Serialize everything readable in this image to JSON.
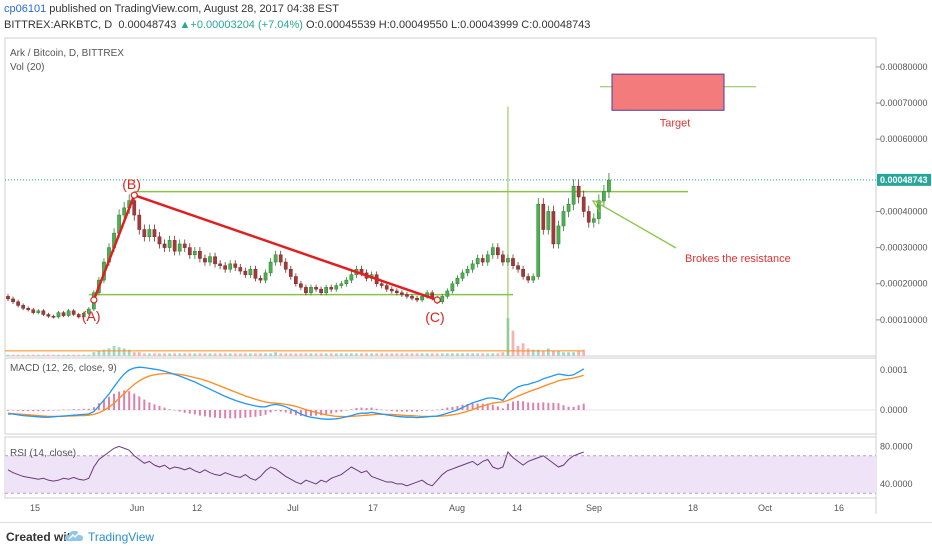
{
  "header": {
    "publisher": "cp06101",
    "published_text": "published on TradingView.com, August 28, 2017 04:38 EST",
    "symbol": "BITTREX:ARKBTC, D",
    "last": "0.00048743",
    "change_arrow": "▲",
    "change": "+0.00003204 (+7.04%)",
    "ohlc": "O:0.00045539 H:0.00049550 L:0.00043999 C:0.00048743"
  },
  "panes": {
    "main_title": "Ark / Bitcoin, D, BITTREX",
    "vol_label": "Vol (20)",
    "macd_label": "MACD (12, 26, close, 9)",
    "rsi_label": "RSI (14, close)"
  },
  "annotations": {
    "point_a": "(A)",
    "point_b": "(B)",
    "point_c": "(C)",
    "target": "Target",
    "note": "Brokes the resistance"
  },
  "footer": {
    "created_with": "Created with",
    "brand": "TradingView",
    "logo_icon": "tradingview-cloud-icon"
  },
  "colors": {
    "up": "#26a69a",
    "down": "#ef5350",
    "candle_body_up": "#4caf50",
    "candle_body_down": "#a33a3a",
    "trendline": "#e02020",
    "support": "#8bc34a",
    "macd": "#2196f3",
    "signal": "#ff8a1e",
    "hist": "#d04a8a",
    "rsi": "#6a3a7a",
    "rsi_band": "#efe3f7",
    "target_box": "#f37b7b",
    "price_tag": "#26a69a"
  },
  "chart_data": {
    "type": "candlestick",
    "x_ticks": [
      "15",
      "Jun",
      "12",
      "Jul",
      "17",
      "Aug",
      "14",
      "Sep",
      "18",
      "Oct",
      "16"
    ],
    "price_axis": {
      "ticks": [
        "0.00080000",
        "0.00070000",
        "0.00060000",
        "0.00040000",
        "0.00030000",
        "0.00020000",
        "0.00010000"
      ],
      "range": [
        0.0,
        0.00088
      ],
      "current": "0.00048743",
      "current_value": 0.00048743
    },
    "macd_axis": {
      "ticks": [
        "0.0001",
        "0.0000"
      ],
      "range": [
        -6e-05,
        0.00013
      ]
    },
    "rsi_axis": {
      "ticks": [
        "80.0000",
        "40.0000"
      ],
      "range": [
        25,
        90
      ],
      "band": [
        30,
        70
      ]
    },
    "patterns": {
      "A": {
        "x": 17,
        "price": 0.000155
      },
      "B": {
        "x": 25,
        "price": 0.000445
      },
      "C": {
        "x": 85,
        "price": 0.000155
      },
      "resistance": 0.000455,
      "support": 0.00017,
      "target_box": {
        "x0": 119,
        "x1": 140,
        "top": 0.00078,
        "bottom": 0.00068
      },
      "target_line": 0.000745
    },
    "candles": [
      [
        0.000165,
        0.000158
      ],
      [
        0.000158,
        0.00015
      ],
      [
        0.00015,
        0.00014
      ],
      [
        0.00014,
        0.000132
      ],
      [
        0.000132,
        0.000128
      ],
      [
        0.000128,
        0.00012
      ],
      [
        0.00012,
        0.000125
      ],
      [
        0.000125,
        0.000115
      ],
      [
        0.000115,
        0.00011
      ],
      [
        0.00011,
        0.000108
      ],
      [
        0.000108,
        0.00012
      ],
      [
        0.00012,
        0.000112
      ],
      [
        0.000112,
        0.000125
      ],
      [
        0.000125,
        0.000115
      ],
      [
        0.000115,
        0.000108
      ],
      [
        0.000108,
        0.000118
      ],
      [
        0.000118,
        0.00013
      ],
      [
        0.00013,
        0.000175
      ],
      [
        0.000175,
        0.00021
      ],
      [
        0.00021,
        0.00026
      ],
      [
        0.00026,
        0.0003
      ],
      [
        0.0003,
        0.00034
      ],
      [
        0.00034,
        0.00039
      ],
      [
        0.00039,
        0.00041
      ],
      [
        0.00041,
        0.00043
      ],
      [
        0.00043,
        0.00039
      ],
      [
        0.00039,
        0.00035
      ],
      [
        0.00035,
        0.00033
      ],
      [
        0.00033,
        0.00035
      ],
      [
        0.00035,
        0.00033
      ],
      [
        0.00033,
        0.00031
      ],
      [
        0.00031,
        0.0003
      ],
      [
        0.0003,
        0.00032
      ],
      [
        0.00032,
        0.00029
      ],
      [
        0.00029,
        0.00031
      ],
      [
        0.00031,
        0.0003
      ],
      [
        0.0003,
        0.00028
      ],
      [
        0.00028,
        0.00029
      ],
      [
        0.00029,
        0.00027
      ],
      [
        0.00027,
        0.00026
      ],
      [
        0.00026,
        0.000275
      ],
      [
        0.000275,
        0.000255
      ],
      [
        0.000255,
        0.00025
      ],
      [
        0.00025,
        0.00024
      ],
      [
        0.00024,
        0.000255
      ],
      [
        0.000255,
        0.000245
      ],
      [
        0.000245,
        0.000235
      ],
      [
        0.000235,
        0.000225
      ],
      [
        0.000225,
        0.00024
      ],
      [
        0.00024,
        0.000215
      ],
      [
        0.000215,
        0.00021
      ],
      [
        0.00021,
        0.00023
      ],
      [
        0.00023,
        0.00026
      ],
      [
        0.00026,
        0.00028
      ],
      [
        0.00028,
        0.00026
      ],
      [
        0.00026,
        0.00024
      ],
      [
        0.00024,
        0.00022
      ],
      [
        0.00022,
        0.0002
      ],
      [
        0.0002,
        0.00019
      ],
      [
        0.00019,
        0.000175
      ],
      [
        0.000175,
        0.00019
      ],
      [
        0.00019,
        0.000185
      ],
      [
        0.000185,
        0.000175
      ],
      [
        0.000175,
        0.00019
      ],
      [
        0.00019,
        0.000185
      ],
      [
        0.000185,
        0.000195
      ],
      [
        0.000195,
        0.0002
      ],
      [
        0.0002,
        0.00021
      ],
      [
        0.00021,
        0.000225
      ],
      [
        0.000225,
        0.00024
      ],
      [
        0.00024,
        0.00023
      ],
      [
        0.00023,
        0.000215
      ],
      [
        0.000215,
        0.000225
      ],
      [
        0.000225,
        0.0002
      ],
      [
        0.0002,
        0.000195
      ],
      [
        0.000195,
        0.000185
      ],
      [
        0.000185,
        0.00018
      ],
      [
        0.00018,
        0.000175
      ],
      [
        0.000175,
        0.00017
      ],
      [
        0.00017,
        0.000165
      ],
      [
        0.000165,
        0.00016
      ],
      [
        0.00016,
        0.000155
      ],
      [
        0.000155,
        0.000165
      ],
      [
        0.000165,
        0.000175
      ],
      [
        0.000175,
        0.00016
      ],
      [
        0.00016,
        0.00015
      ],
      [
        0.00015,
        0.000165
      ],
      [
        0.000165,
        0.00018
      ],
      [
        0.00018,
        0.0002
      ],
      [
        0.0002,
        0.000215
      ],
      [
        0.000215,
        0.00023
      ],
      [
        0.00023,
        0.00024
      ],
      [
        0.00024,
        0.000255
      ],
      [
        0.000255,
        0.00027
      ],
      [
        0.00027,
        0.00026
      ],
      [
        0.00026,
        0.00028
      ],
      [
        0.00028,
        0.0003
      ],
      [
        0.0003,
        0.00028
      ],
      [
        0.00028,
        0.00026
      ],
      [
        0.00026,
        0.00027
      ],
      [
        0.00027,
        0.00025
      ],
      [
        0.00025,
        0.00024
      ],
      [
        0.00024,
        0.00022
      ],
      [
        0.00022,
        0.00021
      ],
      [
        0.00021,
        0.00022
      ],
      [
        0.00022,
        0.00042
      ],
      [
        0.00042,
        0.00035
      ],
      [
        0.00035,
        0.0004
      ],
      [
        0.0004,
        0.00031
      ],
      [
        0.00031,
        0.00036
      ],
      [
        0.00036,
        0.0004
      ],
      [
        0.0004,
        0.00042
      ],
      [
        0.00042,
        0.00047
      ],
      [
        0.00047,
        0.00044
      ],
      [
        0.00044,
        0.0004
      ],
      [
        0.0004,
        0.00037
      ],
      [
        0.00037,
        0.00038
      ],
      [
        0.00038,
        0.00043
      ],
      [
        0.00043,
        0.000455
      ],
      [
        0.000455,
        0.000487
      ]
    ],
    "spike": {
      "x": 99,
      "high": 0.00069
    },
    "volumes": [
      1,
      1,
      1,
      1,
      1,
      1,
      1,
      1,
      1,
      1,
      1,
      1,
      1,
      1,
      1,
      1,
      1,
      3,
      4,
      5,
      6,
      8,
      7,
      6,
      5,
      3,
      3,
      2,
      2,
      2,
      2,
      2,
      2,
      2,
      2,
      2,
      2,
      2,
      2,
      2,
      2,
      2,
      2,
      2,
      2,
      2,
      2,
      2,
      2,
      2,
      2,
      2,
      2,
      3,
      2,
      2,
      2,
      2,
      2,
      2,
      2,
      2,
      2,
      2,
      2,
      2,
      2,
      2,
      2,
      2,
      2,
      2,
      2,
      2,
      2,
      2,
      2,
      2,
      2,
      2,
      2,
      2,
      2,
      2,
      2,
      2,
      2,
      2,
      2,
      2,
      2,
      2,
      2,
      2,
      2,
      2,
      2,
      2,
      3,
      30,
      20,
      8,
      10,
      6,
      5,
      5,
      4,
      6,
      4,
      4,
      3,
      3,
      3,
      4,
      5
    ],
    "volume_ma": 4,
    "macd": [
      -1e-05,
      -1e-05,
      -1.2e-05,
      -1.4e-05,
      -1.5e-05,
      -1.6e-05,
      -1.7e-05,
      -1.8e-05,
      -1.8e-05,
      -1.7e-05,
      -1.6e-05,
      -1.5e-05,
      -1.4e-05,
      -1.3e-05,
      -1.2e-05,
      -1.1e-05,
      -1e-05,
      -4e-06,
      1e-05,
      2.5e-05,
      4e-05,
      5.8e-05,
      7.5e-05,
      9e-05,
      0.0001,
      0.000105,
      0.000107,
      0.000106,
      0.000104,
      0.000102,
      0.0001,
      9.7e-05,
      9.3e-05,
      8.9e-05,
      8.5e-05,
      8e-05,
      7.5e-05,
      7e-05,
      6.4e-05,
      5.8e-05,
      5.2e-05,
      4.6e-05,
      4e-05,
      3.4e-05,
      2.9e-05,
      2.4e-05,
      2e-05,
      1.6e-05,
      1.3e-05,
      1e-05,
      8e-06,
      8e-06,
      1.2e-05,
      1.4e-05,
      1.2e-05,
      8e-06,
      2e-06,
      -4e-06,
      -1e-05,
      -1.5e-05,
      -1.8e-05,
      -2e-05,
      -2.2e-05,
      -2.3e-05,
      -2.3e-05,
      -2.2e-05,
      -2e-05,
      -1.7e-05,
      -1.4e-05,
      -1e-05,
      -8e-06,
      -8e-06,
      -6e-06,
      -8e-06,
      -1e-05,
      -1.2e-05,
      -1.4e-05,
      -1.6e-05,
      -1.7e-05,
      -1.8e-05,
      -1.8e-05,
      -1.9e-05,
      -1.8e-05,
      -1.7e-05,
      -1.6e-05,
      -1.5e-05,
      -1.2e-05,
      -8e-06,
      -4e-06,
      0.0,
      6e-06,
      1.2e-05,
      1.8e-05,
      2.2e-05,
      2.6e-05,
      3e-05,
      3e-05,
      2.8e-05,
      2.4e-05,
      4e-05,
      5e-05,
      5.8e-05,
      6.2e-05,
      6.4e-05,
      6.8e-05,
      7.2e-05,
      7.8e-05,
      8.2e-05,
      8.6e-05,
      9e-05,
      8.8e-05,
      8.6e-05,
      8.8e-05,
      9.5e-05,
      0.000103
    ],
    "signal": [
      -8e-06,
      -9e-06,
      -1e-05,
      -1.1e-05,
      -1.2e-05,
      -1.3e-05,
      -1.4e-05,
      -1.5e-05,
      -1.6e-05,
      -1.6e-05,
      -1.6e-05,
      -1.6e-05,
      -1.5e-05,
      -1.5e-05,
      -1.4e-05,
      -1.4e-05,
      -1.3e-05,
      -1.1e-05,
      -7e-06,
      -1e-06,
      7e-06,
      1.7e-05,
      2.9e-05,
      4.1e-05,
      5.3e-05,
      6.4e-05,
      7.3e-05,
      8e-05,
      8.5e-05,
      8.8e-05,
      9e-05,
      9.1e-05,
      9.1e-05,
      9e-05,
      8.9e-05,
      8.7e-05,
      8.4e-05,
      8.1e-05,
      7.8e-05,
      7.4e-05,
      7e-05,
      6.5e-05,
      6e-05,
      5.5e-05,
      5e-05,
      4.5e-05,
      4e-05,
      3.5e-05,
      3.1e-05,
      2.7e-05,
      2.3e-05,
      2e-05,
      1.8e-05,
      1.7e-05,
      1.6e-05,
      1.4e-05,
      1.2e-05,
      9e-06,
      5e-06,
      1e-06,
      -3e-06,
      -6e-06,
      -9e-06,
      -1.2e-05,
      -1.4e-05,
      -1.6e-05,
      -1.6e-05,
      -1.7e-05,
      -1.6e-05,
      -1.5e-05,
      -1.4e-05,
      -1.3e-05,
      -1.2e-05,
      -1.1e-05,
      -1.1e-05,
      -1.1e-05,
      -1.1e-05,
      -1.2e-05,
      -1.3e-05,
      -1.4e-05,
      -1.4e-05,
      -1.5e-05,
      -1.6e-05,
      -1.6e-05,
      -1.6e-05,
      -1.6e-05,
      -1.5e-05,
      -1.4e-05,
      -1.2e-05,
      -1e-05,
      -7e-06,
      -3e-06,
      1e-06,
      6e-06,
      1e-05,
      1.4e-05,
      1.7e-05,
      1.9e-05,
      2e-05,
      2.4e-05,
      2.9e-05,
      3.5e-05,
      4e-05,
      4.5e-05,
      5e-05,
      5.4e-05,
      5.9e-05,
      6.4e-05,
      6.8e-05,
      7.3e-05,
      7.6e-05,
      7.8e-05,
      8e-05,
      8.3e-05,
      8.7e-05
    ],
    "rsi": [
      55,
      52,
      50,
      48,
      47,
      46,
      45,
      46,
      44,
      43,
      44,
      46,
      45,
      47,
      45,
      44,
      46,
      58,
      66,
      70,
      74,
      78,
      80,
      78,
      76,
      70,
      66,
      62,
      64,
      60,
      58,
      60,
      56,
      58,
      57,
      55,
      57,
      54,
      52,
      55,
      52,
      50,
      49,
      52,
      50,
      48,
      47,
      50,
      46,
      44,
      48,
      54,
      58,
      56,
      52,
      48,
      45,
      42,
      40,
      44,
      42,
      40,
      44,
      42,
      46,
      48,
      50,
      54,
      58,
      55,
      52,
      54,
      48,
      46,
      44,
      42,
      42,
      40,
      40,
      38,
      40,
      42,
      44,
      40,
      38,
      44,
      50,
      54,
      56,
      58,
      60,
      62,
      64,
      60,
      64,
      66,
      58,
      56,
      58,
      74,
      68,
      64,
      60,
      64,
      66,
      68,
      70,
      66,
      62,
      58,
      60,
      66,
      70,
      72,
      74
    ]
  }
}
